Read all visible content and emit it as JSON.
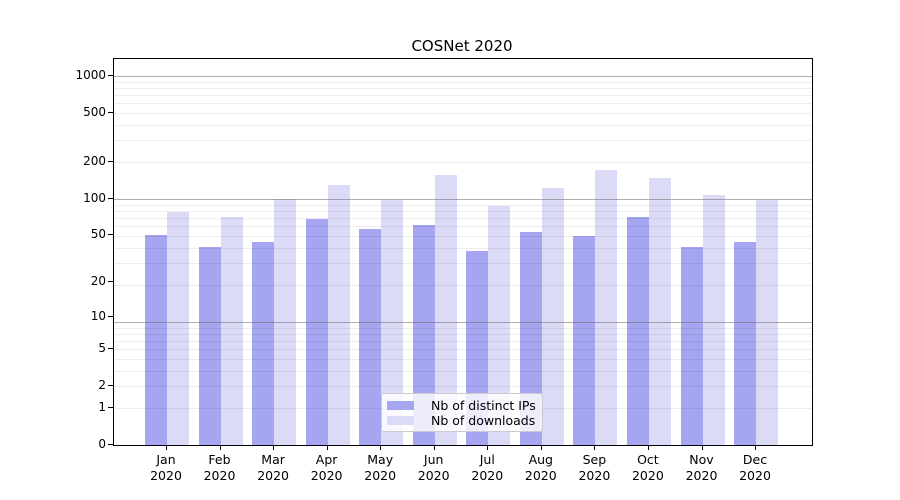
{
  "chart_data": {
    "type": "bar",
    "title": "COSNet 2020",
    "categories": [
      "Jan 2020",
      "Feb 2020",
      "Mar 2020",
      "Apr 2020",
      "May 2020",
      "Jun 2020",
      "Jul 2020",
      "Aug 2020",
      "Sep 2020",
      "Oct 2020",
      "Nov 2020",
      "Dec 2020"
    ],
    "series": [
      {
        "name": "Nb of distinct IPs",
        "color": "#a5a5f0",
        "values": [
          50,
          40,
          44,
          68,
          56,
          60,
          37,
          53,
          49,
          71,
          40,
          44
        ]
      },
      {
        "name": "Nb of downloads",
        "color": "#dbdbf8",
        "values": [
          78,
          71,
          100,
          129,
          98,
          157,
          86,
          123,
          170,
          148,
          106,
          97
        ]
      }
    ],
    "y_axis": {
      "scale": "logarithmic in (value+1)",
      "tick_labels": [
        1000,
        500,
        200,
        100,
        50,
        20,
        10,
        5,
        2,
        1,
        0
      ],
      "ylim": [
        0,
        1350
      ],
      "grid": "horizontal only; gray major lines at 10/100/1000, faint minor lines at 2-9 multiples"
    },
    "x_axis": {
      "tick_label_year": "2020"
    },
    "legend": {
      "position": "inside plot, lower center",
      "frame": true
    },
    "colors": {
      "major_grid": "#b2b2b2",
      "minor_grid": "#ededed",
      "spine": "#000000",
      "text": "#000000",
      "background": "#ffffff"
    }
  }
}
